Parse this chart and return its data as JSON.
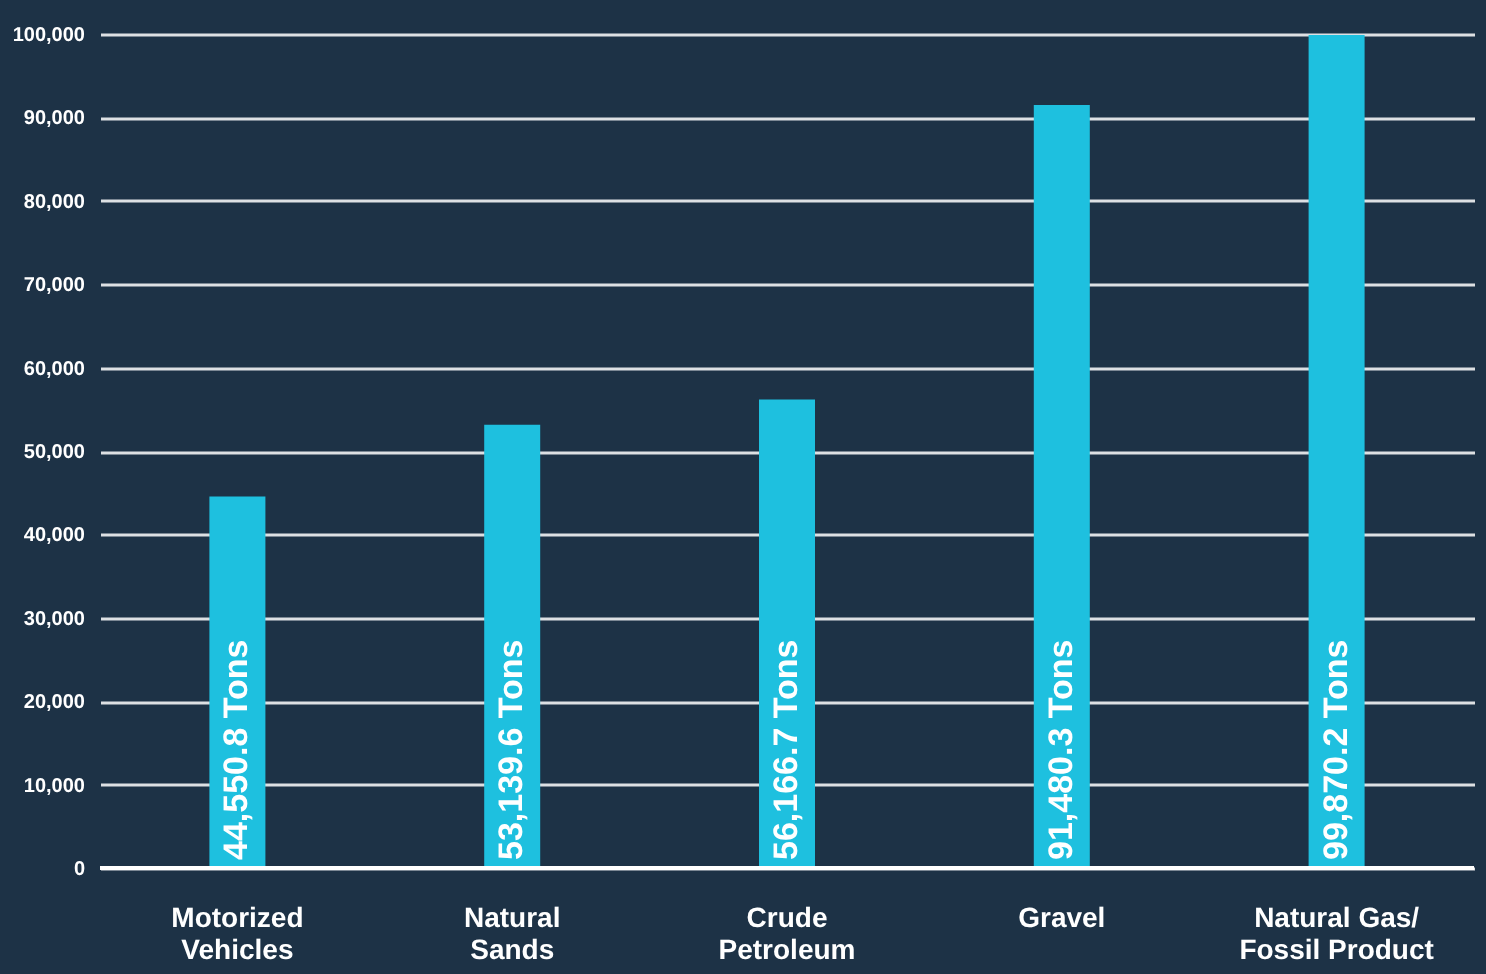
{
  "chart_data": {
    "type": "bar",
    "categories": [
      "Motorized\nVehicles",
      "Natural\nSands",
      "Crude\nPetroleum",
      "Gravel",
      "Natural Gas/\nFossil Product"
    ],
    "values": [
      44550.8,
      53139.6,
      56166.7,
      91480.3,
      99870.2
    ],
    "value_labels": [
      "44,550.8 Tons",
      "53,139.6 Tons",
      "56,166.7 Tons",
      "91,480.3 Tons",
      "99,870.2 Tons"
    ],
    "color": "#1ec0df",
    "ylim": [
      0,
      100000
    ],
    "yticks": [
      {
        "value": 0,
        "label": "0"
      },
      {
        "value": 10000,
        "label": "10,000"
      },
      {
        "value": 20000,
        "label": "20,000"
      },
      {
        "value": 30000,
        "label": "30,000"
      },
      {
        "value": 40000,
        "label": "40,000"
      },
      {
        "value": 50000,
        "label": "50,000"
      },
      {
        "value": 60000,
        "label": "60,000"
      },
      {
        "value": 70000,
        "label": "70,000"
      },
      {
        "value": 80000,
        "label": "80,000"
      },
      {
        "value": 90000,
        "label": "90,000"
      },
      {
        "value": 100000,
        "label": "100,000"
      }
    ],
    "grid": "y"
  }
}
